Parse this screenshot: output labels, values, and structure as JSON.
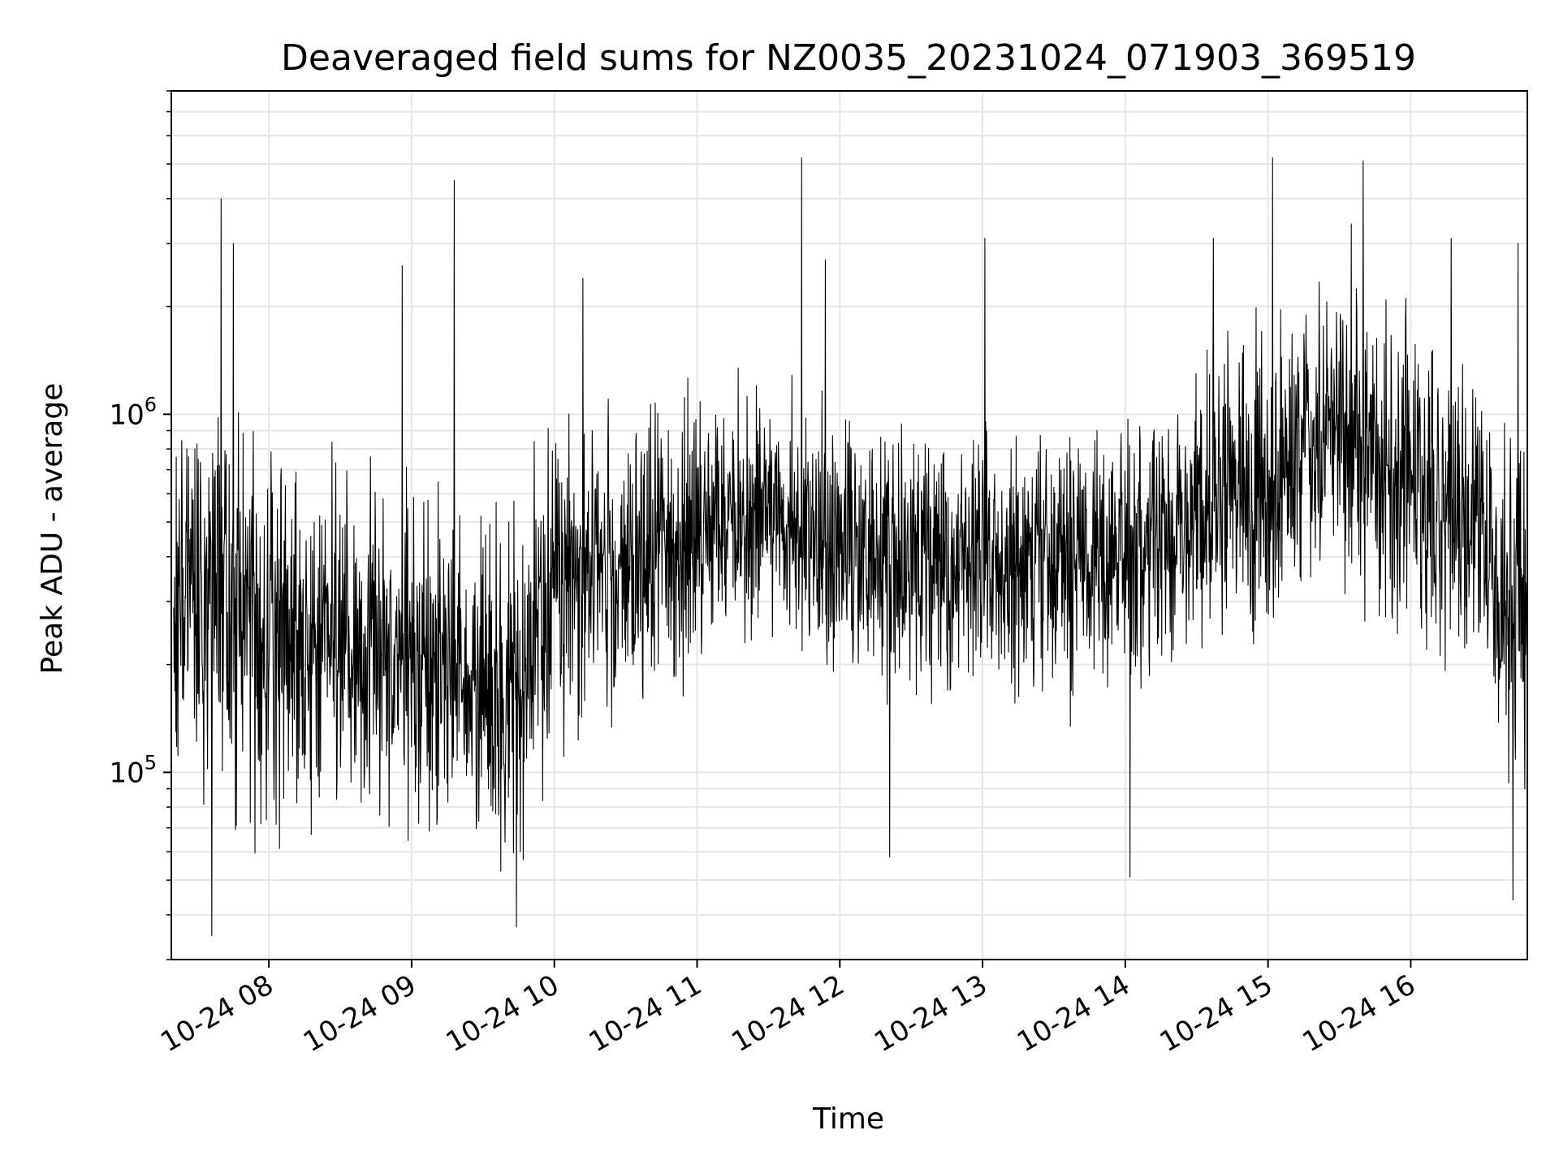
{
  "chart_data": {
    "type": "line",
    "title": "Deaveraged field sums for NZ0035_20231024_071903_369519",
    "xlabel": "Time",
    "ylabel": "Peak ADU - average",
    "yscale": "log",
    "ylim": [
      30000,
      8000000
    ],
    "xlim": [
      "2023-10-24 07:19",
      "2023-10-24 16:49"
    ],
    "grid": true,
    "line_color": "#000000",
    "grid_color": "#e5e5e5",
    "x_ticks": [
      {
        "time": "2023-10-24 08:00",
        "label": "10-24 08"
      },
      {
        "time": "2023-10-24 09:00",
        "label": "10-24 09"
      },
      {
        "time": "2023-10-24 10:00",
        "label": "10-24 10"
      },
      {
        "time": "2023-10-24 11:00",
        "label": "10-24 11"
      },
      {
        "time": "2023-10-24 12:00",
        "label": "10-24 12"
      },
      {
        "time": "2023-10-24 13:00",
        "label": "10-24 13"
      },
      {
        "time": "2023-10-24 14:00",
        "label": "10-24 14"
      },
      {
        "time": "2023-10-24 15:00",
        "label": "10-24 15"
      },
      {
        "time": "2023-10-24 16:00",
        "label": "10-24 16"
      }
    ],
    "y_ticks": [
      {
        "value": 100000,
        "base": "10",
        "exp": "5"
      },
      {
        "value": 1000000,
        "base": "10",
        "exp": "6"
      }
    ],
    "envelope": [
      {
        "time": "2023-10-24 07:20",
        "center": 300000,
        "spread": 2.0
      },
      {
        "time": "2023-10-24 07:50",
        "center": 280000,
        "spread": 2.4
      },
      {
        "time": "2023-10-24 08:20",
        "center": 230000,
        "spread": 2.0
      },
      {
        "time": "2023-10-24 08:45",
        "center": 230000,
        "spread": 2.1
      },
      {
        "time": "2023-10-24 09:15",
        "center": 190000,
        "spread": 2.1
      },
      {
        "time": "2023-10-24 09:45",
        "center": 150000,
        "spread": 2.2
      },
      {
        "time": "2023-10-24 10:00",
        "center": 350000,
        "spread": 2.0
      },
      {
        "time": "2023-10-24 10:30",
        "center": 400000,
        "spread": 1.9
      },
      {
        "time": "2023-10-24 11:00",
        "center": 450000,
        "spread": 1.8
      },
      {
        "time": "2023-10-24 11:30",
        "center": 550000,
        "spread": 1.7
      },
      {
        "time": "2023-10-24 12:00",
        "center": 420000,
        "spread": 1.8
      },
      {
        "time": "2023-10-24 12:30",
        "center": 380000,
        "spread": 1.9
      },
      {
        "time": "2023-10-24 13:00",
        "center": 400000,
        "spread": 1.8
      },
      {
        "time": "2023-10-24 13:30",
        "center": 380000,
        "spread": 1.8
      },
      {
        "time": "2023-10-24 14:00",
        "center": 420000,
        "spread": 1.8
      },
      {
        "time": "2023-10-24 14:30",
        "center": 550000,
        "spread": 1.9
      },
      {
        "time": "2023-10-24 15:00",
        "center": 650000,
        "spread": 2.0
      },
      {
        "time": "2023-10-24 15:30",
        "center": 850000,
        "spread": 1.9
      },
      {
        "time": "2023-10-24 16:00",
        "center": 650000,
        "spread": 2.0
      },
      {
        "time": "2023-10-24 16:25",
        "center": 550000,
        "spread": 2.0
      },
      {
        "time": "2023-10-24 16:40",
        "center": 300000,
        "spread": 2.2
      }
    ],
    "spikes": [
      {
        "time": "2023-10-24 07:40",
        "value": 4000000
      },
      {
        "time": "2023-10-24 07:45",
        "value": 3000000
      },
      {
        "time": "2023-10-24 07:36",
        "value": 35000
      },
      {
        "time": "2023-10-24 08:56",
        "value": 2600000
      },
      {
        "time": "2023-10-24 09:18",
        "value": 4500000
      },
      {
        "time": "2023-10-24 09:44",
        "value": 37000
      },
      {
        "time": "2023-10-24 10:12",
        "value": 2400000
      },
      {
        "time": "2023-10-24 11:44",
        "value": 5200000
      },
      {
        "time": "2023-10-24 11:54",
        "value": 2700000
      },
      {
        "time": "2023-10-24 12:21",
        "value": 58000
      },
      {
        "time": "2023-10-24 13:01",
        "value": 3100000
      },
      {
        "time": "2023-10-24 14:02",
        "value": 51000
      },
      {
        "time": "2023-10-24 14:37",
        "value": 3100000
      },
      {
        "time": "2023-10-24 15:02",
        "value": 5200000
      },
      {
        "time": "2023-10-24 15:40",
        "value": 5100000
      },
      {
        "time": "2023-10-24 15:35",
        "value": 3400000
      },
      {
        "time": "2023-10-24 16:17",
        "value": 3100000
      },
      {
        "time": "2023-10-24 16:45",
        "value": 3000000
      },
      {
        "time": "2023-10-24 16:43",
        "value": 44000
      }
    ]
  }
}
